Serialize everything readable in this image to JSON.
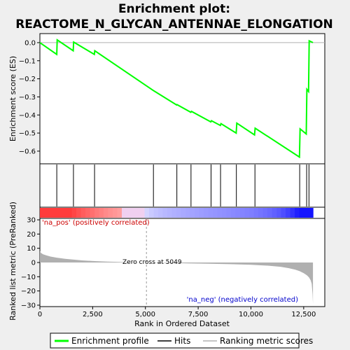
{
  "title_line1": "Enrichment plot:",
  "title_line2": "REACTOME_N_GLYCAN_ANTENNAE_ELONGATION",
  "colors": {
    "profile": "#00ff00",
    "hits": "#000000",
    "metric_fill": "#b0b0b0",
    "pos_label": "#cc0000",
    "neg_label": "#0000cc",
    "panel_bg": "#ffffff",
    "page_bg": "#efefef"
  },
  "chart_data": [
    {
      "type": "line",
      "panel": "enrichment",
      "ylabel": "Enrichment score (ES)",
      "ylim": [
        -0.67,
        0.05
      ],
      "xlim": [
        0,
        13500
      ],
      "yticks": [
        0.0,
        -0.1,
        -0.2,
        -0.3,
        -0.4,
        -0.5,
        -0.6
      ],
      "ytick_labels": [
        "0.0",
        "−0.1",
        "−0.2",
        "−0.3",
        "−0.4",
        "−0.5",
        "−0.6"
      ],
      "series": [
        {
          "name": "Enrichment profile",
          "x": [
            0,
            800,
            820,
            1580,
            1600,
            2580,
            2600,
            5380,
            6480,
            6500,
            7150,
            7180,
            8100,
            8130,
            8550,
            8580,
            9300,
            9330,
            10170,
            10200,
            12300,
            12330,
            12620,
            12650,
            12730,
            12760,
            12940
          ],
          "y": [
            0.0,
            -0.065,
            0.015,
            -0.045,
            0.003,
            -0.065,
            -0.045,
            -0.265,
            -0.345,
            -0.343,
            -0.385,
            -0.38,
            -0.438,
            -0.432,
            -0.458,
            -0.448,
            -0.5,
            -0.445,
            -0.51,
            -0.473,
            -0.633,
            -0.477,
            -0.505,
            -0.258,
            -0.27,
            0.01,
            0.0
          ]
        }
      ],
      "hits_x": [
        800,
        1590,
        2590,
        5380,
        6490,
        7160,
        8110,
        8560,
        9310,
        10190,
        12310,
        12640,
        12750
      ]
    },
    {
      "type": "area",
      "panel": "ranked_metric",
      "ylabel": "Ranked list metric (PreRanked)",
      "xlabel": "Rank in Ordered Dataset",
      "xlim": [
        0,
        13500
      ],
      "ylim": [
        -31,
        31
      ],
      "yticks": [
        30,
        20,
        10,
        0,
        -10,
        -20,
        -30
      ],
      "xticks": [
        0,
        2500,
        5000,
        7500,
        10000,
        12500
      ],
      "xtick_labels": [
        "0",
        "2,500",
        "5,000",
        "7,500",
        "10,000",
        "12,500"
      ],
      "zero_cross": 5049,
      "zero_cross_label": "Zero cross at 5049",
      "pos_label": "'na_pos' (positively correlated)",
      "neg_label": "'na_neg' (negatively correlated)",
      "x": [
        0,
        50,
        150,
        300,
        500,
        800,
        1200,
        1600,
        2000,
        2600,
        3200,
        4000,
        5049,
        6000,
        7000,
        8000,
        9000,
        10000,
        10800,
        11400,
        11800,
        12100,
        12300,
        12500,
        12650,
        12750,
        12830,
        12880,
        12920,
        12940
      ],
      "y": [
        8.0,
        6.8,
        5.8,
        5.0,
        4.2,
        3.4,
        2.6,
        2.0,
        1.5,
        1.0,
        0.6,
        0.3,
        0.0,
        -0.3,
        -0.6,
        -0.9,
        -1.2,
        -1.6,
        -2.2,
        -3.0,
        -4.0,
        -5.0,
        -6.0,
        -7.5,
        -9.0,
        -10.5,
        -12.5,
        -15.0,
        -22.0,
        -29.0
      ]
    }
  ],
  "legend": {
    "profile_label": "Enrichment profile",
    "hits_label": "Hits",
    "metric_label": "Ranking metric scores"
  }
}
